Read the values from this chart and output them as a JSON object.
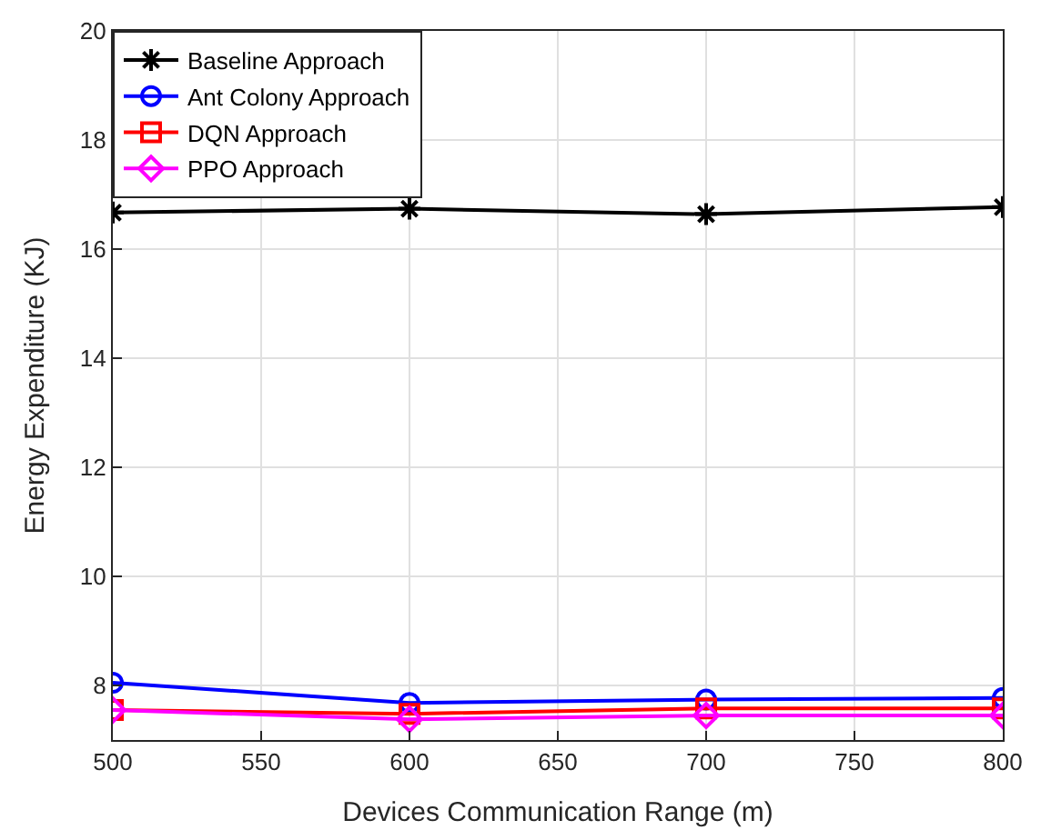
{
  "chart_data": {
    "type": "line",
    "xlabel": "Devices Communication Range (m)",
    "ylabel": "Energy Expenditure (KJ)",
    "x": [
      500,
      600,
      700,
      800
    ],
    "series": [
      {
        "name": "Baseline Approach",
        "color": "#000000",
        "marker": "cross",
        "values": [
          16.67,
          16.74,
          16.64,
          16.77
        ]
      },
      {
        "name": "Ant Colony Approach",
        "color": "#0000ff",
        "marker": "circle",
        "values": [
          8.05,
          7.68,
          7.74,
          7.77
        ]
      },
      {
        "name": "DQN Approach",
        "color": "#ff0000",
        "marker": "square",
        "values": [
          7.55,
          7.48,
          7.58,
          7.58
        ]
      },
      {
        "name": "PPO Approach",
        "color": "#ff00ff",
        "marker": "diamond",
        "values": [
          7.55,
          7.38,
          7.45,
          7.45
        ]
      }
    ],
    "xlim": [
      500,
      800
    ],
    "xticks": [
      500,
      550,
      600,
      650,
      700,
      750,
      800
    ],
    "ylim": [
      7,
      20
    ],
    "yticks": [
      8,
      10,
      12,
      14,
      16,
      18,
      20
    ],
    "grid": true,
    "legend": "top left",
    "line_style": "solid"
  }
}
